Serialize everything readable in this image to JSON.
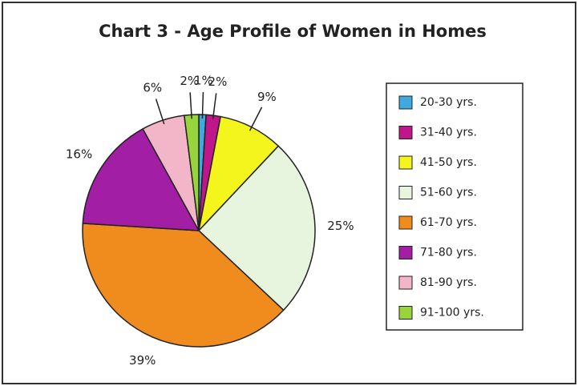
{
  "chart_data": {
    "type": "pie",
    "title": "Chart 3 - Age Profile of Women in Homes",
    "categories": [
      "20-30 yrs.",
      "31-40 yrs.",
      "41-50 yrs.",
      "51-60 yrs.",
      "61-70 yrs.",
      "71-80 yrs.",
      "81-90 yrs.",
      "91-100 yrs."
    ],
    "values": [
      1,
      2,
      9,
      25,
      39,
      16,
      6,
      2
    ],
    "value_labels": [
      "1%",
      "2%",
      "9%",
      "25%",
      "39%",
      "16%",
      "6%",
      "2%"
    ],
    "colors": [
      "#3fa9e0",
      "#c0168c",
      "#f5f51e",
      "#e8f5de",
      "#f08c1e",
      "#a21ea4",
      "#f2b6c8",
      "#98d43c"
    ],
    "legend": "right"
  }
}
